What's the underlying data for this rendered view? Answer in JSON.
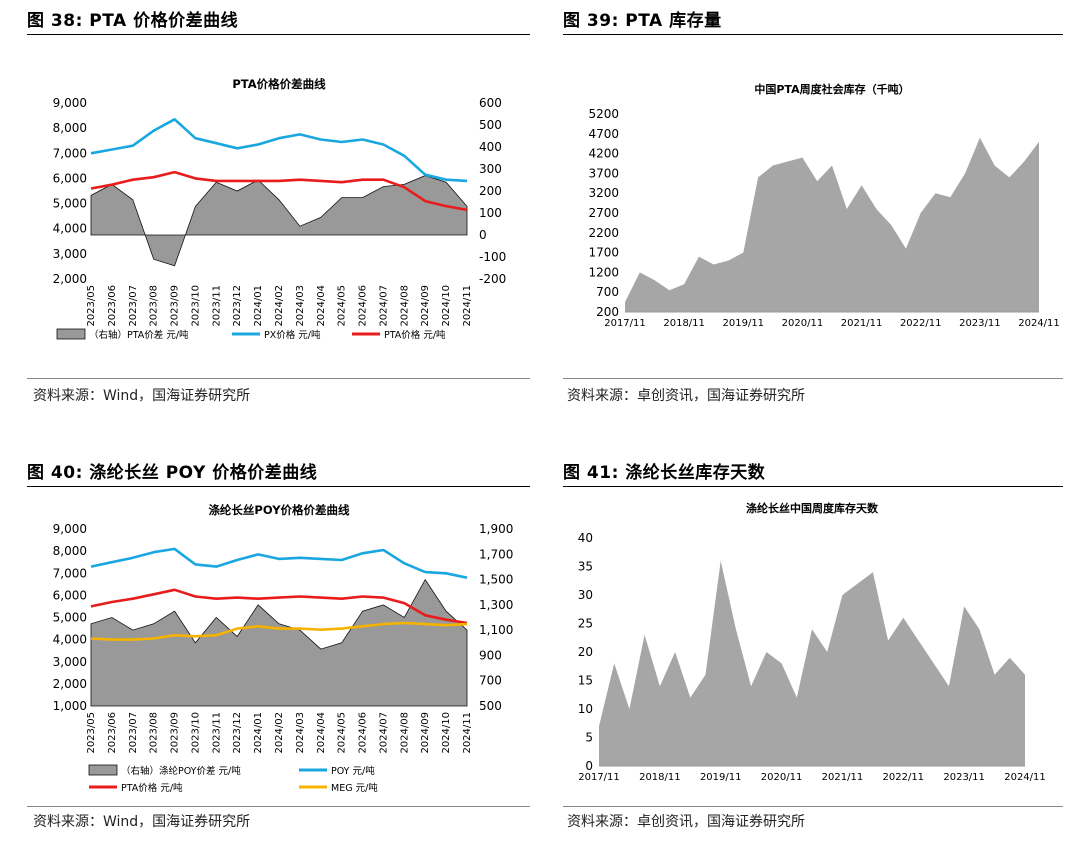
{
  "fig38": {
    "heading": "图 38:  PTA 价格价差曲线",
    "source": "资料来源：Wind，国海证券研究所",
    "chart_data": {
      "type": "line",
      "title": "PTA价格价差曲线",
      "y_left_ticks": [
        "9,000",
        "8,000",
        "7,000",
        "6,000",
        "5,000",
        "4,000",
        "3,000",
        "2,000"
      ],
      "y_right_ticks": [
        "600",
        "500",
        "400",
        "300",
        "200",
        "100",
        "0",
        "-100",
        "-200"
      ],
      "ylim_left": [
        2000,
        9000
      ],
      "ylim_right": [
        -200,
        600
      ],
      "x_ticks": [
        "2023/05",
        "2023/06",
        "2023/07",
        "2023/08",
        "2023/09",
        "2023/10",
        "2023/11",
        "2023/12",
        "2024/01",
        "2024/02",
        "2024/03",
        "2024/04",
        "2024/05",
        "2024/06",
        "2024/07",
        "2024/08",
        "2024/09",
        "2024/10",
        "2024/11"
      ],
      "legend": [
        "（右轴）PTA价差  元/吨",
        "PX价格  元/吨",
        "PTA价格  元/吨"
      ],
      "series": [
        {
          "name": "PX价格  元/吨",
          "axis": "left",
          "color": "#1AA7E0",
          "values": [
            7000,
            7150,
            7300,
            7900,
            8350,
            7600,
            7400,
            7200,
            7350,
            7600,
            7750,
            7550,
            7450,
            7550,
            7350,
            6900,
            6150,
            5950,
            5900
          ]
        },
        {
          "name": "PTA价格  元/吨",
          "axis": "left",
          "color": "#E81C1C",
          "values": [
            5600,
            5750,
            5950,
            6050,
            6250,
            6000,
            5900,
            5900,
            5900,
            5900,
            5950,
            5900,
            5850,
            5950,
            5950,
            5650,
            5100,
            4900,
            4750
          ]
        },
        {
          "name": "（右轴）PTA价差  元/吨",
          "axis": "right",
          "color": "#999999",
          "values": [
            180,
            230,
            160,
            -110,
            -140,
            130,
            240,
            200,
            250,
            160,
            40,
            80,
            170,
            170,
            220,
            230,
            270,
            240,
            130
          ]
        }
      ]
    }
  },
  "fig39": {
    "heading": "图 39:  PTA 库存量",
    "source": "资料来源：卓创资讯，国海证券研究所",
    "chart_data": {
      "type": "area",
      "title": "中国PTA周度社会库存（千吨）",
      "y_ticks": [
        "5200",
        "4700",
        "4200",
        "3700",
        "3200",
        "2700",
        "2200",
        "1700",
        "1200",
        "700",
        "200"
      ],
      "ylim": [
        200,
        5200
      ],
      "x_ticks": [
        "2017/11",
        "2018/11",
        "2019/11",
        "2020/11",
        "2021/11",
        "2022/11",
        "2023/11",
        "2024/11"
      ],
      "color": "#A6A6A6",
      "x": [
        "2017/11",
        "2018/02",
        "2018/05",
        "2018/08",
        "2018/11",
        "2019/02",
        "2019/05",
        "2019/08",
        "2019/11",
        "2020/02",
        "2020/05",
        "2020/08",
        "2020/11",
        "2021/02",
        "2021/05",
        "2021/08",
        "2021/11",
        "2022/02",
        "2022/05",
        "2022/08",
        "2022/11",
        "2023/02",
        "2023/05",
        "2023/08",
        "2023/11",
        "2024/02",
        "2024/05",
        "2024/08",
        "2024/11"
      ],
      "values": [
        450,
        1200,
        1000,
        750,
        900,
        1600,
        1400,
        1500,
        1700,
        3600,
        3900,
        4000,
        4100,
        3500,
        3900,
        2800,
        3400,
        2800,
        2400,
        1800,
        2700,
        3200,
        3100,
        3700,
        4600,
        3900,
        3600,
        4000,
        4500
      ]
    }
  },
  "fig40": {
    "heading": "图 40:  涤纶长丝 POY 价格价差曲线",
    "source": "资料来源：Wind，国海证券研究所",
    "chart_data": {
      "type": "line",
      "title": "涤纶长丝POY价格价差曲线",
      "y_left_ticks": [
        "9,000",
        "8,000",
        "7,000",
        "6,000",
        "5,000",
        "4,000",
        "3,000",
        "2,000",
        "1,000"
      ],
      "y_right_ticks": [
        "1,900",
        "1,700",
        "1,500",
        "1,300",
        "1,100",
        "900",
        "700",
        "500"
      ],
      "ylim_left": [
        1000,
        9000
      ],
      "ylim_right": [
        500,
        1900
      ],
      "x_ticks": [
        "2023/05",
        "2023/06",
        "2023/07",
        "2023/08",
        "2023/09",
        "2023/10",
        "2023/11",
        "2023/12",
        "2024/01",
        "2024/02",
        "2024/03",
        "2024/04",
        "2024/05",
        "2024/06",
        "2024/07",
        "2024/08",
        "2024/09",
        "2024/10",
        "2024/11"
      ],
      "legend": [
        "（右轴）涤纶POY价差  元/吨",
        "POY  元/吨",
        "PTA价格  元/吨",
        "MEG  元/吨"
      ],
      "series": [
        {
          "name": "POY  元/吨",
          "axis": "left",
          "color": "#1AA7E0",
          "values": [
            7300,
            7500,
            7700,
            7950,
            8100,
            7400,
            7300,
            7600,
            7850,
            7650,
            7700,
            7650,
            7600,
            7900,
            8050,
            7450,
            7050,
            7000,
            6800
          ]
        },
        {
          "name": "PTA价格  元/吨",
          "axis": "left",
          "color": "#E81C1C",
          "values": [
            5500,
            5700,
            5850,
            6050,
            6250,
            5950,
            5850,
            5900,
            5850,
            5900,
            5950,
            5900,
            5850,
            5950,
            5900,
            5650,
            5100,
            4900,
            4750
          ]
        },
        {
          "name": "MEG  元/吨",
          "axis": "left",
          "color": "#F6B400",
          "values": [
            4050,
            4000,
            4000,
            4050,
            4200,
            4150,
            4200,
            4500,
            4600,
            4500,
            4500,
            4450,
            4500,
            4600,
            4700,
            4750,
            4700,
            4650,
            4700
          ]
        },
        {
          "name": "（右轴）涤纶POY价差  元/吨",
          "axis": "right",
          "color": "#999999",
          "values": [
            1150,
            1200,
            1100,
            1150,
            1250,
            1000,
            1200,
            1050,
            1300,
            1150,
            1100,
            950,
            1000,
            1250,
            1300,
            1200,
            1500,
            1250,
            1100
          ]
        }
      ]
    }
  },
  "fig41": {
    "heading": "图 41:  涤纶长丝库存天数",
    "source": "资料来源：卓创资讯，国海证券研究所",
    "chart_data": {
      "type": "area",
      "title": "涤纶长丝中国周度库存天数",
      "y_ticks": [
        "40",
        "35",
        "30",
        "25",
        "20",
        "15",
        "10",
        "5",
        "0"
      ],
      "ylim": [
        0,
        40
      ],
      "x_ticks": [
        "2017/11",
        "2018/11",
        "2019/11",
        "2020/11",
        "2021/11",
        "2022/11",
        "2023/11",
        "2024/11"
      ],
      "color": "#A6A6A6",
      "x": [
        "2017/11",
        "2018/02",
        "2018/05",
        "2018/08",
        "2018/11",
        "2019/02",
        "2019/05",
        "2019/08",
        "2019/11",
        "2020/02",
        "2020/05",
        "2020/08",
        "2020/11",
        "2021/02",
        "2021/05",
        "2021/08",
        "2021/11",
        "2022/02",
        "2022/05",
        "2022/08",
        "2022/11",
        "2023/02",
        "2023/05",
        "2023/08",
        "2023/11",
        "2024/02",
        "2024/05",
        "2024/08",
        "2024/11"
      ],
      "values": [
        7,
        18,
        10,
        23,
        14,
        20,
        12,
        16,
        36,
        24,
        14,
        20,
        18,
        12,
        24,
        20,
        30,
        32,
        34,
        22,
        26,
        22,
        18,
        14,
        28,
        24,
        16,
        19,
        16
      ]
    }
  }
}
